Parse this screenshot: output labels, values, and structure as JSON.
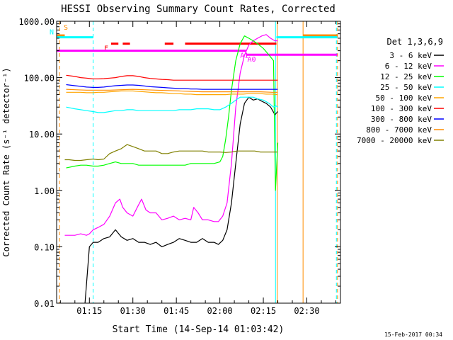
{
  "chart_data": {
    "type": "line",
    "title": "HESSI Observing Summary Count Rates, Corrected",
    "xlabel": "Start Time (14-Sep-14 01:03:42)",
    "ylabel": "Corrected Count Rate (s⁻¹ detector⁻¹)",
    "footer": "15-Feb-2017 00:34",
    "y_log": true,
    "ylim": [
      0.01,
      1000
    ],
    "xlim_minutes": [
      63.7,
      161.6
    ],
    "x_ticks": [
      {
        "label": "01:15",
        "minute": 75
      },
      {
        "label": "01:30",
        "minute": 90
      },
      {
        "label": "01:45",
        "minute": 105
      },
      {
        "label": "02:00",
        "minute": 120
      },
      {
        "label": "02:15",
        "minute": 135
      },
      {
        "label": "02:30",
        "minute": 150
      }
    ],
    "y_ticks": [
      {
        "label": "0.01",
        "value": 0.01
      },
      {
        "label": "0.10",
        "value": 0.1
      },
      {
        "label": "1.00",
        "value": 1
      },
      {
        "label": "10.00",
        "value": 10
      },
      {
        "label": "100.00",
        "value": 100
      },
      {
        "label": "1000.00",
        "value": 1000
      }
    ],
    "legend": {
      "title": "Det 1,3,6,9",
      "placement": "right",
      "entries": [
        {
          "label": "3 - 6 keV",
          "color": "#000000"
        },
        {
          "label": "6 - 12 keV",
          "color": "#ff00ff"
        },
        {
          "label": "12 - 25 keV",
          "color": "#00ff00"
        },
        {
          "label": "25 - 50 keV",
          "color": "#00ffff"
        },
        {
          "label": "50 - 100 keV",
          "color": "#ffa500"
        },
        {
          "label": "100 - 300 keV",
          "color": "#ff0000"
        },
        {
          "label": "300 - 800 keV",
          "color": "#0000ff"
        },
        {
          "label": "800 - 7000 keV",
          "color": "#ff8c00"
        },
        {
          "label": "7000 - 20000 keV",
          "color": "#808000"
        }
      ]
    },
    "series": [
      {
        "name": "3 - 6 keV",
        "color": "#000000",
        "x": [
          73.5,
          75.0,
          76.3,
          78.0,
          80.0,
          82.0,
          84.0,
          86.0,
          88.0,
          90.0,
          92.0,
          94.0,
          96.0,
          98.0,
          100.0,
          102.0,
          104.0,
          106.0,
          108.0,
          110.0,
          112.0,
          114.0,
          116.0,
          118.0,
          119.5,
          121.0,
          122.5,
          124.0,
          125.5,
          127.0,
          128.5,
          130.0,
          131.5,
          133.0,
          134.5,
          136.0,
          137.5,
          139.0,
          140.0
        ],
        "y": [
          0.01,
          0.1,
          0.12,
          0.12,
          0.14,
          0.15,
          0.2,
          0.15,
          0.13,
          0.14,
          0.12,
          0.12,
          0.11,
          0.12,
          0.1,
          0.11,
          0.12,
          0.14,
          0.13,
          0.12,
          0.12,
          0.14,
          0.12,
          0.12,
          0.11,
          0.13,
          0.2,
          0.6,
          3,
          15,
          35,
          45,
          40,
          42,
          38,
          35,
          30,
          22,
          25
        ]
      },
      {
        "name": "6 - 12 keV",
        "color": "#ff00ff",
        "x": [
          66.5,
          70.0,
          72.0,
          74.0,
          75.0,
          76.3,
          78.0,
          80.0,
          82.0,
          84.0,
          85.5,
          86.5,
          88.0,
          90.0,
          91.5,
          93.0,
          94.5,
          96.0,
          98.0,
          100.0,
          102.0,
          104.0,
          106.0,
          108.0,
          110.0,
          111.0,
          112.5,
          114.0,
          116.0,
          118.0,
          119.5,
          121.0,
          122.5,
          124.0,
          125.5,
          127.0,
          128.5,
          130.0,
          131.5,
          133.0,
          134.5,
          136.0,
          137.5,
          139.0,
          140.0
        ],
        "y": [
          0.16,
          0.16,
          0.17,
          0.16,
          0.17,
          0.2,
          0.22,
          0.25,
          0.35,
          0.6,
          0.7,
          0.5,
          0.4,
          0.35,
          0.5,
          0.7,
          0.45,
          0.4,
          0.4,
          0.3,
          0.32,
          0.35,
          0.3,
          0.32,
          0.3,
          0.5,
          0.4,
          0.3,
          0.3,
          0.28,
          0.28,
          0.35,
          0.6,
          3,
          30,
          120,
          250,
          380,
          450,
          500,
          550,
          580,
          500,
          450,
          450
        ]
      },
      {
        "name": "12 - 25 keV",
        "color": "#00ff00",
        "x": [
          67.0,
          70.0,
          72.0,
          74.0,
          76.3,
          78.0,
          80.0,
          82.0,
          84.0,
          86.0,
          88.0,
          90.0,
          92.0,
          94.0,
          96.0,
          98.0,
          100.0,
          102.0,
          104.0,
          106.0,
          108.0,
          110.0,
          112.0,
          114.0,
          116.0,
          118.0,
          120.0,
          121.0,
          122.0,
          123.0,
          124.0,
          125.5,
          127.0,
          128.5,
          130.0,
          131.5,
          133.0,
          135.0,
          137.0,
          138.5,
          139.2,
          140.0
        ],
        "y": [
          2.5,
          2.7,
          2.8,
          2.8,
          2.7,
          2.7,
          2.8,
          3.0,
          3.2,
          3.0,
          3.0,
          3.0,
          2.8,
          2.8,
          2.8,
          2.8,
          2.8,
          2.8,
          2.8,
          2.8,
          2.8,
          3.0,
          3.0,
          3.0,
          3.0,
          3.0,
          3.2,
          4,
          8,
          20,
          60,
          200,
          400,
          550,
          500,
          450,
          400,
          330,
          250,
          200,
          1,
          7
        ]
      },
      {
        "name": "25 - 50 keV",
        "color": "#00ffff",
        "x": [
          67.0,
          70.0,
          72.0,
          74.0,
          76.3,
          78.0,
          80.0,
          82.0,
          84.0,
          86.0,
          88.0,
          90.0,
          92.0,
          94.0,
          96.0,
          98.0,
          100.0,
          102.0,
          104.0,
          106.0,
          108.0,
          110.0,
          112.0,
          114.0,
          116.0,
          118.0,
          120.0,
          122.0,
          124.0,
          125.5,
          127.0,
          128.5,
          130.0,
          131.5,
          133.0,
          135.0,
          137.0,
          138.5,
          139.2,
          140.0
        ],
        "y": [
          30,
          28,
          27,
          26,
          25,
          24,
          24,
          25,
          26,
          26,
          27,
          27,
          26,
          26,
          26,
          26,
          26,
          26,
          26,
          27,
          27,
          27,
          28,
          28,
          28,
          27,
          27,
          30,
          35,
          40,
          45,
          45,
          45,
          45,
          42,
          40,
          35,
          30,
          32,
          30
        ]
      },
      {
        "name": "50 - 100 keV",
        "color": "#ffa500",
        "x": [
          67.0,
          70.0,
          72.0,
          74.0,
          76.3,
          78.0,
          80.0,
          82.0,
          84.0,
          86.0,
          88.0,
          90.0,
          92.0,
          94.0,
          96.0,
          98.0,
          100.0,
          102.0,
          104.0,
          106.0,
          108.0,
          110.0,
          112.0,
          114.0,
          116.0,
          118.0,
          120.0,
          122.0,
          124.0,
          126.0,
          128.0,
          130.0,
          132.0,
          134.0,
          136.0,
          138.0,
          140.0
        ],
        "y": [
          55,
          55,
          55,
          54,
          54,
          55,
          55,
          56,
          57,
          58,
          58,
          58,
          57,
          56,
          55,
          54,
          54,
          53,
          52,
          52,
          51,
          51,
          50,
          50,
          50,
          50,
          50,
          50,
          51,
          51,
          51,
          52,
          52,
          52,
          51,
          51,
          50
        ]
      },
      {
        "name": "100 - 300 keV",
        "color": "#ff0000",
        "x": [
          67.0,
          70.0,
          72.0,
          74.0,
          76.3,
          78.0,
          80.0,
          82.0,
          84.0,
          86.0,
          88.0,
          90.0,
          92.0,
          94.0,
          96.0,
          98.0,
          100.0,
          102.0,
          104.0,
          106.0,
          108.0,
          110.0,
          112.0,
          114.0,
          116.0,
          118.0,
          120.0,
          122.0,
          124.0,
          126.0,
          128.0,
          130.0,
          132.0,
          134.0,
          136.0,
          138.0,
          140.0
        ],
        "y": [
          110,
          105,
          100,
          98,
          95,
          95,
          96,
          98,
          100,
          105,
          108,
          108,
          105,
          100,
          97,
          95,
          93,
          92,
          90,
          90,
          90,
          90,
          90,
          90,
          90,
          90,
          90,
          90,
          90,
          90,
          90,
          90,
          90,
          90,
          90,
          90,
          90
        ]
      },
      {
        "name": "300 - 800 keV",
        "color": "#0000ff",
        "x": [
          67.0,
          70.0,
          72.0,
          74.0,
          76.3,
          78.0,
          80.0,
          82.0,
          84.0,
          86.0,
          88.0,
          90.0,
          92.0,
          94.0,
          96.0,
          98.0,
          100.0,
          102.0,
          104.0,
          106.0,
          108.0,
          110.0,
          112.0,
          114.0,
          116.0,
          118.0,
          120.0,
          122.0,
          124.0,
          126.0,
          128.0,
          130.0,
          132.0,
          134.0,
          136.0,
          138.0,
          140.0
        ],
        "y": [
          75,
          72,
          70,
          68,
          67,
          67,
          68,
          70,
          72,
          73,
          74,
          74,
          73,
          71,
          69,
          68,
          67,
          66,
          65,
          64,
          64,
          63,
          63,
          62,
          62,
          62,
          62,
          62,
          62,
          62,
          62,
          62,
          62,
          62,
          62,
          62,
          62
        ]
      },
      {
        "name": "800 - 7000 keV",
        "color": "#ff8c00",
        "x": [
          67.0,
          70.0,
          74.0,
          78.0,
          82.0,
          86.0,
          90.0,
          94.0,
          98.0,
          102.0,
          106.0,
          110.0,
          114.0,
          118.0,
          122.0,
          126.0,
          130.0,
          134.0,
          138.0,
          140.0
        ],
        "y": [
          62,
          61,
          60,
          60,
          60,
          61,
          62,
          61,
          60,
          59,
          58,
          57,
          56,
          56,
          56,
          56,
          56,
          56,
          55,
          55
        ]
      },
      {
        "name": "7000 - 20000 keV",
        "color": "#808000",
        "x": [
          66.5,
          68.0,
          70.0,
          72.0,
          74.0,
          76.3,
          78.0,
          80.0,
          82.0,
          84.0,
          86.0,
          88.0,
          90.0,
          92.0,
          94.0,
          96.0,
          98.0,
          100.0,
          102.0,
          104.0,
          106.0,
          108.0,
          110.0,
          112.0,
          114.0,
          116.0,
          118.0,
          120.0,
          122.0,
          124.0,
          126.0,
          128.0,
          130.0,
          132.0,
          134.0,
          136.0,
          138.0,
          140.0
        ],
        "y": [
          3.5,
          3.5,
          3.4,
          3.4,
          3.5,
          3.6,
          3.5,
          3.6,
          4.5,
          5.0,
          5.5,
          6.5,
          6.0,
          5.5,
          5.0,
          5.0,
          5.0,
          4.5,
          4.5,
          4.8,
          5.0,
          5.0,
          5.0,
          5.0,
          5.0,
          4.8,
          4.8,
          4.8,
          4.7,
          4.8,
          5.0,
          5.0,
          5.0,
          5.0,
          4.8,
          4.8,
          4.8,
          4.8
        ]
      }
    ],
    "attenuator_flags": [
      {
        "label": "S",
        "color": "#ff8c00",
        "value": 560,
        "segments": [
          [
            63.7,
            66.5
          ],
          [
            148.7,
            160.5
          ]
        ]
      },
      {
        "label": "N",
        "color": "#00ffff",
        "value": 520,
        "segments": [
          [
            63.7,
            76.3
          ],
          [
            139.5,
            160.5
          ]
        ]
      },
      {
        "label": "F",
        "color": "#ff0000",
        "value": 400,
        "segments": [
          [
            82.5,
            85.0
          ],
          [
            86.5,
            89.0
          ],
          [
            101.0,
            104.0
          ],
          [
            108.0,
            139.5
          ]
        ]
      },
      {
        "label": "A1",
        "color": "#ff00ff",
        "value": 300,
        "segments": [
          [
            63.7,
            129.0
          ]
        ]
      },
      {
        "label": "A0",
        "color": "#ff00ff",
        "value": 255,
        "segments": [
          [
            129.0,
            160.5
          ]
        ]
      }
    ],
    "vlines": [
      {
        "minute": 63.7,
        "color": "#00ffff",
        "style": "dashed"
      },
      {
        "minute": 64.7,
        "color": "#ff8c00",
        "style": "dashed"
      },
      {
        "minute": 76.3,
        "color": "#00ffff",
        "style": "dashed"
      },
      {
        "minute": 139.2,
        "color": "#00ffff",
        "style": "solid"
      },
      {
        "minute": 139.8,
        "color": "#ff8c00",
        "style": "solid"
      },
      {
        "minute": 148.7,
        "color": "#ff8c00",
        "style": "solid"
      },
      {
        "minute": 160.2,
        "color": "#00ffff",
        "style": "dashed"
      },
      {
        "minute": 160.6,
        "color": "#ff8c00",
        "style": "dashed"
      }
    ]
  }
}
